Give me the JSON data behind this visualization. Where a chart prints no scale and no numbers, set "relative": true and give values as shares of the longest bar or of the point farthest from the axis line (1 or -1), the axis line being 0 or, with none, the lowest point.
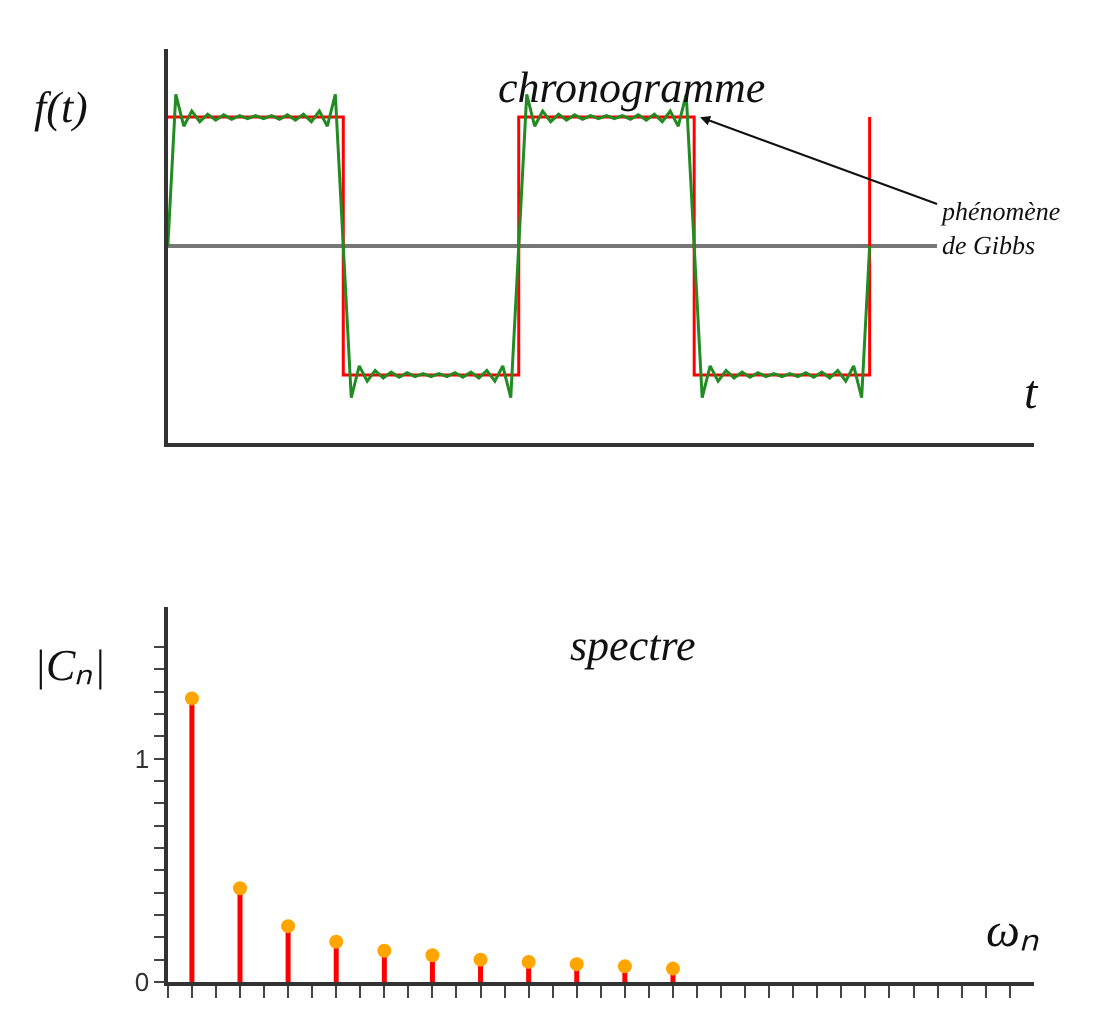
{
  "chart_data": [
    {
      "type": "line",
      "title": "chronogramme",
      "ylabel": "f(t)",
      "xlabel": "t",
      "relative": true,
      "categories": [
        null,
        null,
        null,
        null,
        null,
        null,
        null,
        null,
        null,
        null,
        null,
        null,
        null,
        null,
        null,
        null,
        null,
        null,
        null,
        null,
        null,
        null,
        null,
        null,
        null,
        null,
        null,
        null,
        null,
        null,
        null,
        null,
        null,
        null,
        null,
        null,
        null,
        null,
        null,
        null,
        null,
        null,
        null,
        null,
        null,
        null,
        null,
        null,
        null,
        null,
        null,
        null,
        null,
        null,
        null,
        null,
        null,
        null,
        null,
        null,
        null,
        null,
        null,
        null,
        null,
        null,
        null,
        null,
        null,
        null,
        null,
        null,
        null,
        null,
        null,
        null,
        null,
        null,
        null,
        null,
        null,
        null,
        null,
        null,
        null,
        null,
        null,
        null,
        null
      ],
      "annotations": [
        "phénomène\nde Gibbs"
      ],
      "series": [
        {
          "type": "step",
          "color": "#ff0000",
          "values": [
            0.85,
            0.85,
            0.85,
            0.85,
            0.85,
            0.85,
            0.85,
            0.85,
            0.85,
            0.85,
            0.85,
            0.85,
            0.85,
            0.85,
            0.85,
            0.85,
            0.85,
            0.85,
            0.85,
            0.85,
            0.85,
            0.85,
            -0.85,
            -0.85,
            -0.85,
            -0.85,
            -0.85,
            -0.85,
            -0.85,
            -0.85,
            -0.85,
            -0.85,
            -0.85,
            -0.85,
            -0.85,
            -0.85,
            -0.85,
            -0.85,
            -0.85,
            -0.85,
            -0.85,
            -0.85,
            -0.85,
            -0.85,
            0.85,
            0.85,
            0.85,
            0.85,
            0.85,
            0.85,
            0.85,
            0.85,
            0.85,
            0.85,
            0.85,
            0.85,
            0.85,
            0.85,
            0.85,
            0.85,
            0.85,
            0.85,
            0.85,
            0.85,
            0.85,
            0.85,
            -0.85,
            -0.85,
            -0.85,
            -0.85,
            -0.85,
            -0.85,
            -0.85,
            -0.85,
            -0.85,
            -0.85,
            -0.85,
            -0.85,
            -0.85,
            -0.85,
            -0.85,
            -0.85,
            -0.85,
            -0.85,
            -0.85,
            -0.85,
            -0.85,
            -0.85,
            0.85
          ]
        },
        {
          "type": "line",
          "color": "#228b22",
          "values": [
            0,
            1.0,
            0.79,
            0.89,
            0.82,
            0.87,
            0.83,
            0.865,
            0.835,
            0.86,
            0.84,
            0.86,
            0.84,
            0.86,
            0.835,
            0.865,
            0.83,
            0.87,
            0.82,
            0.89,
            0.79,
            1.0,
            0,
            -1.0,
            -0.79,
            -0.89,
            -0.82,
            -0.87,
            -0.83,
            -0.865,
            -0.835,
            -0.86,
            -0.84,
            -0.86,
            -0.84,
            -0.86,
            -0.835,
            -0.865,
            -0.83,
            -0.87,
            -0.82,
            -0.89,
            -0.79,
            -1.0,
            0,
            1.0,
            0.79,
            0.89,
            0.82,
            0.87,
            0.83,
            0.865,
            0.835,
            0.86,
            0.84,
            0.86,
            0.84,
            0.86,
            0.835,
            0.865,
            0.83,
            0.87,
            0.82,
            0.89,
            0.79,
            1.0,
            0,
            -1.0,
            -0.79,
            -0.89,
            -0.82,
            -0.87,
            -0.83,
            -0.865,
            -0.835,
            -0.86,
            -0.84,
            -0.86,
            -0.84,
            -0.86,
            -0.835,
            -0.865,
            -0.83,
            -0.87,
            -0.82,
            -0.89,
            -0.79,
            -1.0,
            0
          ]
        }
      ]
    },
    {
      "type": "lollipop",
      "title": "spectre",
      "ylabel": "|Cₙ|",
      "xlabel": "ωₙ",
      "marker": "circle",
      "categories": [
        null,
        null,
        null,
        null,
        null,
        null,
        null,
        null,
        null,
        null,
        null,
        null,
        null,
        null,
        null,
        null,
        null,
        null,
        null,
        null,
        null,
        null,
        null,
        null,
        null,
        null,
        null,
        null,
        null,
        null,
        null,
        null,
        null,
        null,
        null,
        null
      ],
      "ylim": [
        0,
        1.68
      ],
      "yticks": [
        0,
        {
          "value": 0.1,
          "label": null
        },
        {
          "value": 0.2,
          "label": null
        },
        {
          "value": 0.3,
          "label": null
        },
        {
          "value": 0.4,
          "label": null
        },
        {
          "value": 0.5,
          "label": null
        },
        {
          "value": 0.6,
          "label": null
        },
        {
          "value": 0.7,
          "label": null
        },
        {
          "value": 0.8,
          "label": null
        },
        {
          "value": 0.9,
          "label": null
        },
        1,
        {
          "value": 1.1,
          "label": null
        },
        {
          "value": 1.2,
          "label": null
        },
        {
          "value": 1.3,
          "label": null
        },
        {
          "value": 1.4,
          "label": null
        },
        {
          "value": 1.5,
          "label": null
        }
      ],
      "series": [
        {
          "color": "#ff0000",
          "colors": [
            "#ffa500",
            "#ffa500",
            "#ffa500",
            "#ffa500",
            "#ffa500",
            "#ffa500",
            "#ffa500",
            "#ffa500",
            "#ffa500",
            "#ffa500",
            "#ffa500",
            "#ffa500",
            "#ffa500",
            "#ffa500",
            "#ffa500",
            "#ffa500",
            "#ffa500",
            "#ffa500",
            "#ffa500",
            "#ffa500",
            "#ffa500",
            "#ffa500",
            "#ffa500",
            "#ffa500",
            "#ffa500",
            "#ffa500",
            "#ffa500",
            "#ffa500",
            "#ffa500",
            "#ffa500",
            "#ffa500",
            "#ffa500",
            "#ffa500",
            "#ffa500",
            "#ffa500",
            "#ffa500"
          ],
          "values": [
            null,
            1.27,
            null,
            0.42,
            null,
            0.25,
            null,
            0.18,
            null,
            0.14,
            null,
            0.12,
            null,
            0.1,
            null,
            0.09,
            null,
            0.08,
            null,
            0.07,
            null,
            0.06,
            null,
            null,
            null,
            null,
            null,
            null,
            null,
            null,
            null,
            null,
            null,
            null,
            null,
            null
          ]
        }
      ]
    }
  ]
}
